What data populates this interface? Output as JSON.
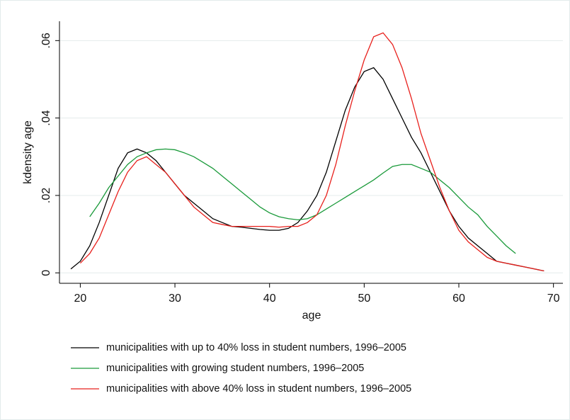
{
  "chart_data": {
    "type": "line",
    "x_label": "age",
    "y_label": "kdensity age",
    "xlim": [
      17.8,
      71
    ],
    "ylim": [
      -0.0027,
      0.065
    ],
    "xticks": [
      20,
      30,
      40,
      50,
      60,
      70
    ],
    "yticks": [
      0,
      {
        "value": 0.02,
        "label": ".02"
      },
      {
        "value": 0.04,
        "label": ".04"
      },
      {
        "value": 0.06,
        "label": ".06"
      }
    ],
    "grid": true,
    "series": [
      {
        "name": "municipalities with up to 40% loss in student numbers, 1996–2005",
        "color": "#000000",
        "x": [
          19,
          20,
          21,
          22,
          23,
          24,
          25,
          26,
          27,
          28,
          29,
          30,
          31,
          32,
          33,
          34,
          35,
          36,
          37,
          38,
          39,
          40,
          41,
          42,
          43,
          44,
          45,
          46,
          47,
          48,
          49,
          50,
          51,
          52,
          53,
          54,
          55,
          56,
          57,
          58,
          59,
          60,
          61,
          62,
          63,
          64,
          65,
          66,
          67,
          68,
          69
        ],
        "values": [
          0.001,
          0.003,
          0.007,
          0.013,
          0.02,
          0.027,
          0.031,
          0.032,
          0.031,
          0.029,
          0.026,
          0.023,
          0.02,
          0.018,
          0.016,
          0.014,
          0.013,
          0.012,
          0.0118,
          0.0115,
          0.0112,
          0.011,
          0.011,
          0.0115,
          0.013,
          0.016,
          0.02,
          0.026,
          0.034,
          0.042,
          0.048,
          0.052,
          0.053,
          0.05,
          0.045,
          0.04,
          0.035,
          0.031,
          0.026,
          0.021,
          0.016,
          0.012,
          0.009,
          0.007,
          0.005,
          0.003,
          0.0025,
          0.002,
          0.0015,
          0.001,
          0.0005
        ]
      },
      {
        "name": "municipalities with growing student numbers, 1996–2005",
        "color": "#1a9a3a",
        "x": [
          21,
          22,
          23,
          24,
          25,
          26,
          27,
          28,
          29,
          30,
          31,
          32,
          33,
          34,
          35,
          36,
          37,
          38,
          39,
          40,
          41,
          42,
          43,
          44,
          45,
          46,
          47,
          48,
          49,
          50,
          51,
          52,
          53,
          54,
          55,
          56,
          57,
          58,
          59,
          60,
          61,
          62,
          63,
          64,
          65,
          66
        ],
        "values": [
          0.0145,
          0.018,
          0.022,
          0.025,
          0.028,
          0.03,
          0.031,
          0.0318,
          0.032,
          0.0318,
          0.031,
          0.03,
          0.0285,
          0.027,
          0.025,
          0.023,
          0.021,
          0.019,
          0.017,
          0.0155,
          0.0145,
          0.014,
          0.0137,
          0.014,
          0.015,
          0.0165,
          0.018,
          0.0195,
          0.021,
          0.0225,
          0.024,
          0.0258,
          0.0275,
          0.028,
          0.028,
          0.027,
          0.026,
          0.024,
          0.022,
          0.0195,
          0.017,
          0.015,
          0.012,
          0.0095,
          0.007,
          0.005
        ]
      },
      {
        "name": "municipalities with above 40% loss in student numbers, 1996–2005",
        "color": "#e8201c",
        "x": [
          20,
          21,
          22,
          23,
          24,
          25,
          26,
          27,
          28,
          29,
          30,
          31,
          32,
          33,
          34,
          35,
          36,
          37,
          38,
          39,
          40,
          41,
          42,
          43,
          44,
          45,
          46,
          47,
          48,
          49,
          50,
          51,
          52,
          53,
          54,
          55,
          56,
          57,
          58,
          59,
          60,
          61,
          62,
          63,
          64,
          65,
          66,
          67,
          68,
          69
        ],
        "values": [
          0.0025,
          0.005,
          0.009,
          0.015,
          0.021,
          0.026,
          0.029,
          0.03,
          0.028,
          0.026,
          0.023,
          0.02,
          0.017,
          0.015,
          0.013,
          0.0125,
          0.012,
          0.012,
          0.012,
          0.012,
          0.012,
          0.0118,
          0.012,
          0.012,
          0.013,
          0.015,
          0.02,
          0.028,
          0.038,
          0.047,
          0.055,
          0.061,
          0.062,
          0.059,
          0.053,
          0.045,
          0.036,
          0.029,
          0.022,
          0.016,
          0.011,
          0.008,
          0.006,
          0.004,
          0.003,
          0.0025,
          0.002,
          0.0015,
          0.001,
          0.0005
        ]
      }
    ]
  }
}
